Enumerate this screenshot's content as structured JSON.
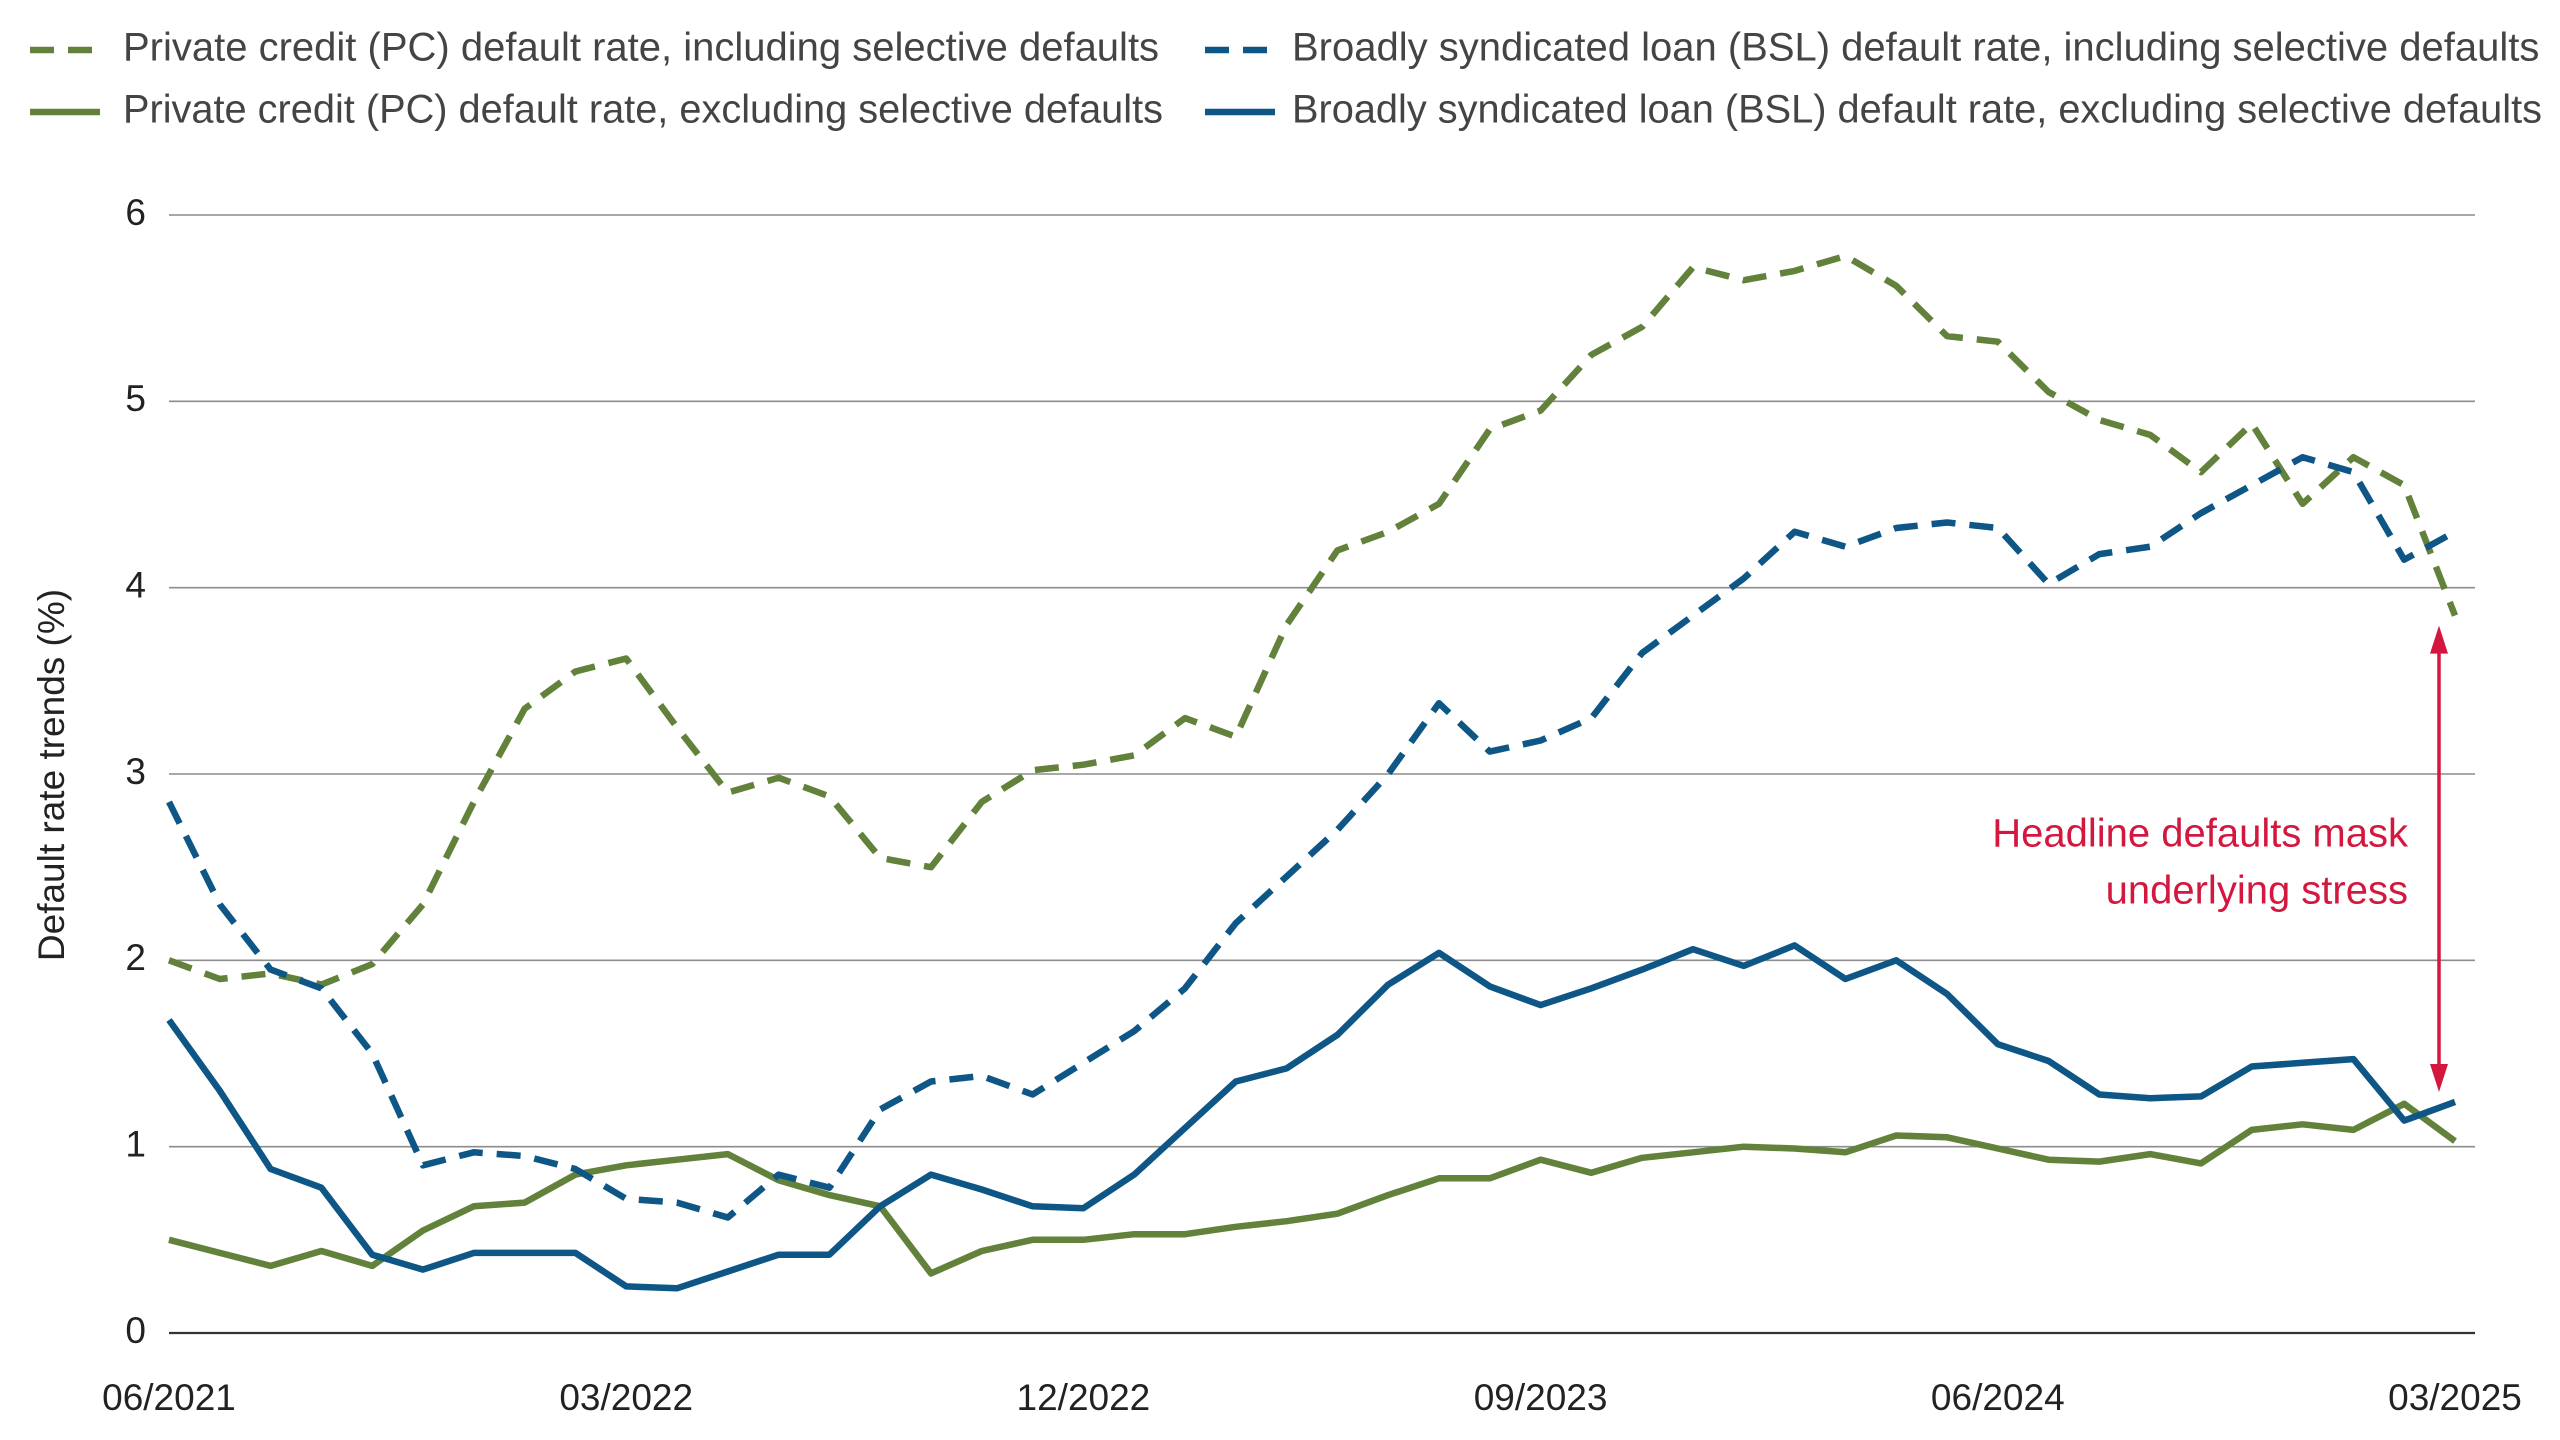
{
  "chart_data": {
    "type": "line",
    "y_label": "Default rate trends (%)",
    "categories": [
      "06/2021",
      null,
      null,
      null,
      null,
      null,
      null,
      null,
      null,
      "03/2022",
      null,
      null,
      null,
      null,
      null,
      null,
      null,
      null,
      "12/2022",
      null,
      null,
      null,
      null,
      null,
      null,
      null,
      null,
      "09/2023",
      null,
      null,
      null,
      null,
      null,
      null,
      null,
      null,
      "06/2024",
      null,
      null,
      null,
      null,
      null,
      null,
      null,
      null,
      "03/2025"
    ],
    "ylim": [
      0,
      6
    ],
    "yticks": [
      0,
      1,
      2,
      3,
      4,
      5,
      6
    ],
    "grid": true,
    "legend": "top",
    "series": [
      {
        "name": "Private credit (PC) default rate, including selective defaults",
        "color": "#62813a",
        "dashed": true,
        "values": [
          2.0,
          1.9,
          1.93,
          1.87,
          1.98,
          2.3,
          2.85,
          3.35,
          3.55,
          3.62,
          3.25,
          2.9,
          2.98,
          2.88,
          2.55,
          2.5,
          2.85,
          3.02,
          3.05,
          3.1,
          3.3,
          3.2,
          3.8,
          4.2,
          4.3,
          4.45,
          4.85,
          4.95,
          5.25,
          5.4,
          5.72,
          5.65,
          5.7,
          5.78,
          5.62,
          5.35,
          5.32,
          5.05,
          4.9,
          4.82,
          4.62,
          4.88,
          4.45,
          4.7,
          4.55,
          3.85
        ]
      },
      {
        "name": "Private credit (PC) default rate, excluding selective defaults",
        "color": "#62813a",
        "dashed": false,
        "values": [
          0.5,
          0.43,
          0.36,
          0.44,
          0.36,
          0.55,
          0.68,
          0.7,
          0.85,
          0.9,
          0.93,
          0.96,
          0.82,
          0.74,
          0.68,
          0.32,
          0.44,
          0.5,
          0.5,
          0.53,
          0.53,
          0.57,
          0.6,
          0.64,
          0.74,
          0.83,
          0.83,
          0.93,
          0.86,
          0.94,
          0.97,
          1.0,
          0.99,
          0.97,
          1.06,
          1.05,
          0.99,
          0.93,
          0.92,
          0.96,
          0.91,
          1.09,
          1.12,
          1.09,
          1.23,
          1.03
        ]
      },
      {
        "name": "Broadly syndicated loan (BSL) default rate, including selective defaults",
        "color": "#0d5686",
        "dashed": true,
        "values": [
          2.85,
          2.3,
          1.95,
          1.85,
          1.5,
          0.9,
          0.97,
          0.95,
          0.88,
          0.72,
          0.7,
          0.62,
          0.85,
          0.78,
          1.2,
          1.35,
          1.38,
          1.28,
          1.45,
          1.62,
          1.85,
          2.2,
          2.45,
          2.7,
          3.0,
          3.38,
          3.12,
          3.18,
          3.3,
          3.65,
          3.85,
          4.05,
          4.3,
          4.22,
          4.32,
          4.35,
          4.32,
          4.02,
          4.18,
          4.22,
          4.4,
          4.55,
          4.7,
          4.62,
          4.15,
          4.3
        ]
      },
      {
        "name": "Broadly syndicated loan (BSL) default rate, excluding selective defaults",
        "color": "#0d5686",
        "dashed": false,
        "values": [
          1.68,
          1.3,
          0.88,
          0.78,
          0.42,
          0.34,
          0.43,
          0.43,
          0.43,
          0.25,
          0.24,
          0.33,
          0.42,
          0.42,
          0.68,
          0.85,
          0.77,
          0.68,
          0.67,
          0.85,
          1.1,
          1.35,
          1.42,
          1.6,
          1.87,
          2.04,
          1.86,
          1.76,
          1.85,
          1.95,
          2.06,
          1.97,
          2.08,
          1.9,
          2.0,
          1.82,
          1.55,
          1.46,
          1.28,
          1.26,
          1.27,
          1.43,
          1.45,
          1.47,
          1.14,
          1.24
        ]
      }
    ],
    "annotation": {
      "lines": [
        "Headline defaults mask",
        "underlying stress"
      ],
      "color": "#d4173e"
    }
  }
}
